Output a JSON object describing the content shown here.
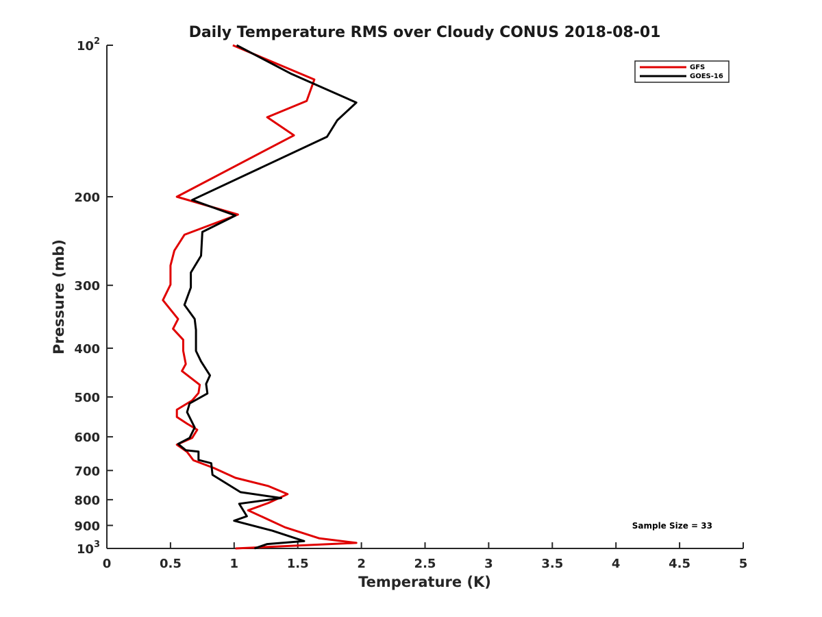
{
  "chart_data": {
    "type": "line",
    "title": "Daily Temperature RMS over Cloudy CONUS 2018-08-01",
    "xlabel": "Temperature (K)",
    "ylabel": "Pressure (mb)",
    "xlim": [
      0,
      5
    ],
    "ylim": [
      100,
      1000
    ],
    "y_scale": "log",
    "y_reversed": true,
    "xticks": [
      0,
      0.5,
      1,
      1.5,
      2,
      2.5,
      3,
      3.5,
      4,
      4.5,
      5
    ],
    "xtick_labels": [
      "0",
      "0.5",
      "1",
      "1.5",
      "2",
      "2.5",
      "3",
      "3.5",
      "4",
      "4.5",
      "5"
    ],
    "yticks": [
      {
        "value": 100,
        "base": "10",
        "exp": "2"
      },
      {
        "value": 200,
        "label": "200"
      },
      {
        "value": 300,
        "label": "300"
      },
      {
        "value": 400,
        "label": "400"
      },
      {
        "value": 500,
        "label": "500"
      },
      {
        "value": 600,
        "label": "600"
      },
      {
        "value": 700,
        "label": "700"
      },
      {
        "value": 800,
        "label": "800"
      },
      {
        "value": 900,
        "label": "900"
      },
      {
        "value": 1000,
        "base": "10",
        "exp": "3"
      }
    ],
    "legend_position": "top-right",
    "annotation": "Sample Size = 33",
    "series": [
      {
        "name": "GFS",
        "color": "#e00000",
        "points": [
          [
            0.99,
            100
          ],
          [
            1.63,
            117
          ],
          [
            1.57,
            129
          ],
          [
            1.26,
            139
          ],
          [
            1.47,
            151
          ],
          [
            0.55,
            200
          ],
          [
            1.03,
            217
          ],
          [
            0.61,
            238
          ],
          [
            0.53,
            256
          ],
          [
            0.5,
            274
          ],
          [
            0.5,
            299
          ],
          [
            0.44,
            321
          ],
          [
            0.56,
            350
          ],
          [
            0.52,
            366
          ],
          [
            0.6,
            385
          ],
          [
            0.6,
            405
          ],
          [
            0.62,
            430
          ],
          [
            0.59,
            444
          ],
          [
            0.73,
            473
          ],
          [
            0.72,
            491
          ],
          [
            0.67,
            508
          ],
          [
            0.55,
            530
          ],
          [
            0.55,
            548
          ],
          [
            0.63,
            565
          ],
          [
            0.71,
            581
          ],
          [
            0.67,
            603
          ],
          [
            0.55,
            622
          ],
          [
            0.63,
            643
          ],
          [
            0.68,
            668
          ],
          [
            0.84,
            692
          ],
          [
            1.01,
            724
          ],
          [
            1.27,
            752
          ],
          [
            1.42,
            780
          ],
          [
            1.27,
            812
          ],
          [
            1.11,
            840
          ],
          [
            1.22,
            865
          ],
          [
            1.4,
            908
          ],
          [
            1.67,
            955
          ],
          [
            1.96,
            975
          ],
          [
            1.01,
            1000
          ]
        ]
      },
      {
        "name": "GOES-16",
        "color": "#000000",
        "points": [
          [
            1.02,
            100
          ],
          [
            1.45,
            114
          ],
          [
            1.96,
            130
          ],
          [
            1.81,
            141
          ],
          [
            1.73,
            152
          ],
          [
            0.67,
            203
          ],
          [
            1.01,
            218
          ],
          [
            0.75,
            235
          ],
          [
            0.74,
            262
          ],
          [
            0.66,
            283
          ],
          [
            0.66,
            303
          ],
          [
            0.61,
            328
          ],
          [
            0.69,
            350
          ],
          [
            0.7,
            368
          ],
          [
            0.7,
            405
          ],
          [
            0.74,
            425
          ],
          [
            0.81,
            453
          ],
          [
            0.78,
            471
          ],
          [
            0.79,
            492
          ],
          [
            0.65,
            515
          ],
          [
            0.63,
            536
          ],
          [
            0.69,
            575
          ],
          [
            0.65,
            603
          ],
          [
            0.56,
            620
          ],
          [
            0.62,
            638
          ],
          [
            0.72,
            642
          ],
          [
            0.72,
            667
          ],
          [
            0.82,
            677
          ],
          [
            0.83,
            714
          ],
          [
            1.05,
            773
          ],
          [
            1.37,
            794
          ],
          [
            1.04,
            815
          ],
          [
            1.1,
            863
          ],
          [
            1.0,
            881
          ],
          [
            1.3,
            922
          ],
          [
            1.55,
            967
          ],
          [
            1.26,
            980
          ],
          [
            1.16,
            1000
          ]
        ]
      }
    ]
  }
}
